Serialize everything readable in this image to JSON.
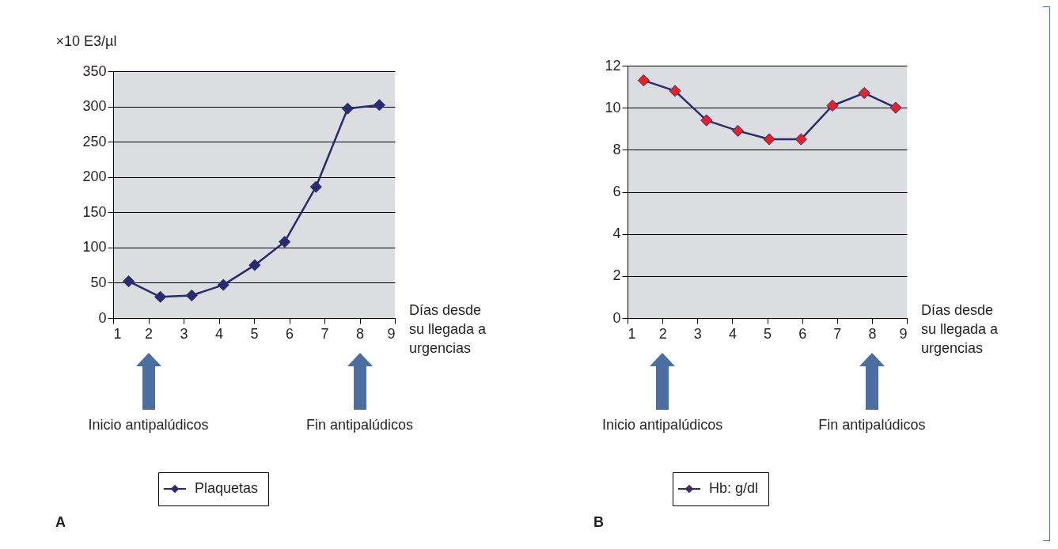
{
  "chart_data": [
    {
      "type": "line",
      "title": "A",
      "ylabel": "×10 E3/µl",
      "xlabel": "Días desde su llegada a urgencias",
      "xlim": [
        1,
        9
      ],
      "xticks": [
        1,
        2,
        3,
        4,
        5,
        6,
        7,
        8,
        9
      ],
      "ylim": [
        0,
        350
      ],
      "yticks": [
        0,
        50,
        100,
        150,
        200,
        250,
        300,
        350
      ],
      "grid": "y",
      "legend": "bottom",
      "marker": "diamond",
      "line_style": "solid",
      "series": [
        {
          "name": "Plaquetas",
          "color": "#2b2a6e",
          "x": [
            1.44,
            2.34,
            3.23,
            4.13,
            5.02,
            5.87,
            6.76,
            7.66,
            8.56
          ],
          "values": [
            52,
            30,
            32,
            47,
            75,
            108,
            186,
            297,
            302
          ]
        }
      ],
      "annotations": [
        "Inicio antipalúdicos",
        "Fin antipalúdicos"
      ]
    },
    {
      "type": "line",
      "title": "B",
      "xlabel": "Días desde su llegada a urgencias",
      "xlim": [
        1,
        9
      ],
      "xticks": [
        1,
        2,
        3,
        4,
        5,
        6,
        7,
        8,
        9
      ],
      "ylim": [
        0,
        12
      ],
      "yticks": [
        0,
        2,
        4,
        6,
        8,
        10,
        12
      ],
      "grid": "y",
      "legend": "bottom",
      "marker": "diamond",
      "line_style": "solid",
      "series": [
        {
          "name": "Hb: g/dl",
          "color": "#e8202a",
          "x": [
            1.46,
            2.36,
            3.26,
            4.16,
            5.06,
            5.97,
            6.87,
            7.78,
            8.68
          ],
          "values": [
            11.3,
            10.8,
            9.4,
            8.9,
            8.5,
            8.5,
            10.1,
            10.7,
            10.0
          ]
        }
      ],
      "annotations": [
        "Inicio antipalúdicos",
        "Fin antipalúdicos"
      ]
    }
  ]
}
